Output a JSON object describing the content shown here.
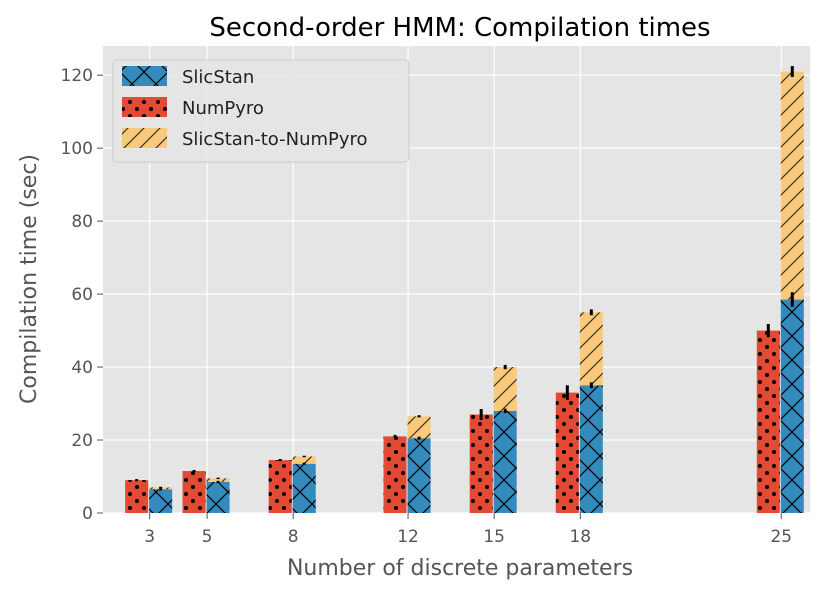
{
  "chart_data": {
    "type": "bar",
    "title": "Second-order HMM: Compilation times",
    "xlabel": "Number of discrete parameters",
    "ylabel": "Compilation time (sec)",
    "x": [
      3,
      5,
      8,
      12,
      15,
      18,
      25
    ],
    "x_ticks": [
      "3",
      "5",
      "8",
      "12",
      "15",
      "18",
      "25"
    ],
    "ylim": [
      0,
      128
    ],
    "y_ticks": [
      "0",
      "20",
      "40",
      "60",
      "80",
      "100",
      "120"
    ],
    "grid": true,
    "legend_position": "top-left",
    "series": [
      {
        "name": "SlicStan",
        "color": "#348ABD",
        "hatch": "cross",
        "stack": "slicstan",
        "values": [
          6.5,
          8.5,
          13.5,
          20.5,
          28,
          35,
          58.5
        ],
        "errors": [
          0.3,
          0.3,
          0.3,
          0.4,
          0.6,
          0.8,
          2.0
        ]
      },
      {
        "name": "NumPyro",
        "color": "#E24A33",
        "hatch": "dots",
        "stack": "numpyro",
        "values": [
          9,
          11.5,
          14.5,
          21,
          27,
          33,
          50
        ],
        "errors": [
          0.3,
          0.3,
          0.3,
          0.4,
          1.5,
          2.0,
          1.8
        ]
      },
      {
        "name": "SlicStan-to-NumPyro",
        "color": "#FBC97A",
        "hatch": "diagonal",
        "stack": "slicstan",
        "values": [
          0.5,
          1.0,
          2.0,
          6.0,
          12.0,
          20.0,
          62.5
        ],
        "errors": [
          0.2,
          0.2,
          0.2,
          0.3,
          0.6,
          0.8,
          1.5
        ]
      }
    ]
  }
}
